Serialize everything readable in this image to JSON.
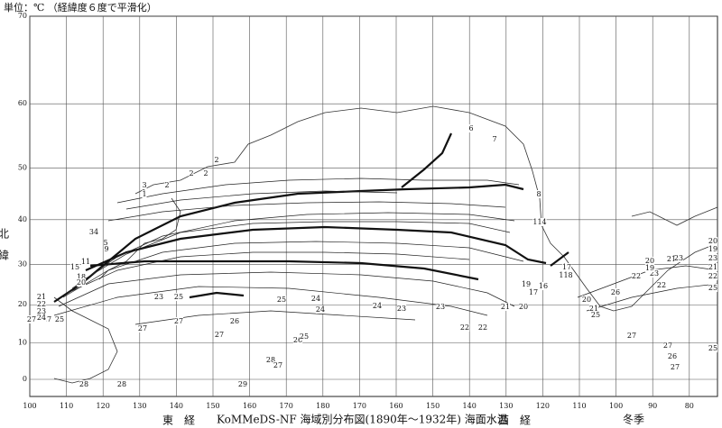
{
  "header": {
    "unit_note": "単位：℃ （経緯度６度で平滑化）"
  },
  "map": {
    "latitude_label": "北緯",
    "east_longitude_label": "東経",
    "west_longitude_label": "西経",
    "latitude_ticks": [
      0,
      10,
      20,
      30,
      40,
      50,
      60,
      70
    ],
    "east_longitude_ticks": [
      100,
      110,
      120,
      130,
      140,
      150,
      160,
      170,
      180
    ],
    "west_longitude_ticks": [
      170,
      160,
      150,
      140,
      130,
      120,
      110,
      100,
      90,
      80
    ],
    "contour_labels": [
      6,
      7,
      8,
      2,
      2,
      2,
      2,
      3,
      1,
      114,
      17,
      118,
      19,
      17,
      16,
      21,
      20,
      22,
      23,
      20,
      19,
      21,
      23,
      20,
      19,
      23,
      21,
      22,
      25,
      22,
      26,
      27,
      26,
      27,
      27,
      25,
      23,
      22,
      22,
      24,
      23,
      24,
      24,
      25,
      26,
      27,
      25,
      23,
      27,
      27,
      26,
      25,
      28,
      27,
      29,
      27,
      27,
      25,
      21,
      22,
      23,
      24,
      18,
      20,
      15,
      11,
      28,
      28,
      20,
      21,
      25,
      5,
      34,
      9
    ]
  },
  "caption": {
    "title": "KoMMeDS-NF 海域別分布図(1890年～1932年) 海面水温",
    "season": "冬季"
  }
}
